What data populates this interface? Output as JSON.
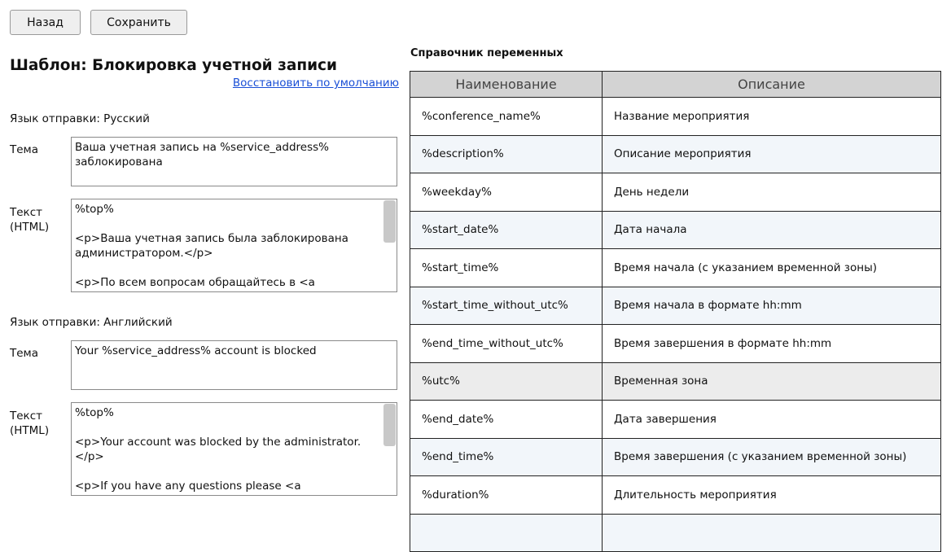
{
  "toolbar": {
    "back_label": "Назад",
    "save_label": "Сохранить"
  },
  "page_title": "Шаблон: Блокировка учетной записи",
  "restore_link": "Восстановить по умолчанию",
  "sections": [
    {
      "language": "Язык отправки: Русский",
      "subject_label": "Тема",
      "subject_value": "Ваша учетная запись на %service_address%\nзаблокирована",
      "body_label": "Текст\n(HTML)",
      "body_value": "%top%\n\n<p>Ваша учетная запись была заблокирована\nадминистратором.</p>\n\n<p>По всем вопросам обращайтесь в <a"
    },
    {
      "language": "Язык отправки: Английский",
      "subject_label": "Тема",
      "subject_value": "Your %service_address% account is blocked",
      "body_label": "Текст\n(HTML)",
      "body_value": "%top%\n\n<p>Your account was blocked by the administrator.</p>\n\n<p>If you have any questions please <a\nhref=\"mailto:%support_email%\">contact our support"
    }
  ],
  "reference": {
    "title": "Справочник переменных",
    "columns": [
      "Наименование",
      "Описание"
    ],
    "rows": [
      [
        "%conference_name%",
        "Название мероприятия"
      ],
      [
        "%description%",
        "Описание мероприятия"
      ],
      [
        "%weekday%",
        "День недели"
      ],
      [
        "%start_date%",
        "Дата начала"
      ],
      [
        "%start_time%",
        "Время начала (с указанием временной зоны)"
      ],
      [
        "%start_time_without_utc%",
        "Время начала в формате hh:mm"
      ],
      [
        "%end_time_without_utc%",
        "Время завершения в формате hh:mm"
      ],
      [
        "%utc%",
        "Временная зона"
      ],
      [
        "%end_date%",
        "Дата завершения"
      ],
      [
        "%end_time%",
        "Время завершения (с указанием временной зоны)"
      ],
      [
        "%duration%",
        "Длительность мероприятия"
      ],
      [
        "",
        ""
      ]
    ]
  }
}
